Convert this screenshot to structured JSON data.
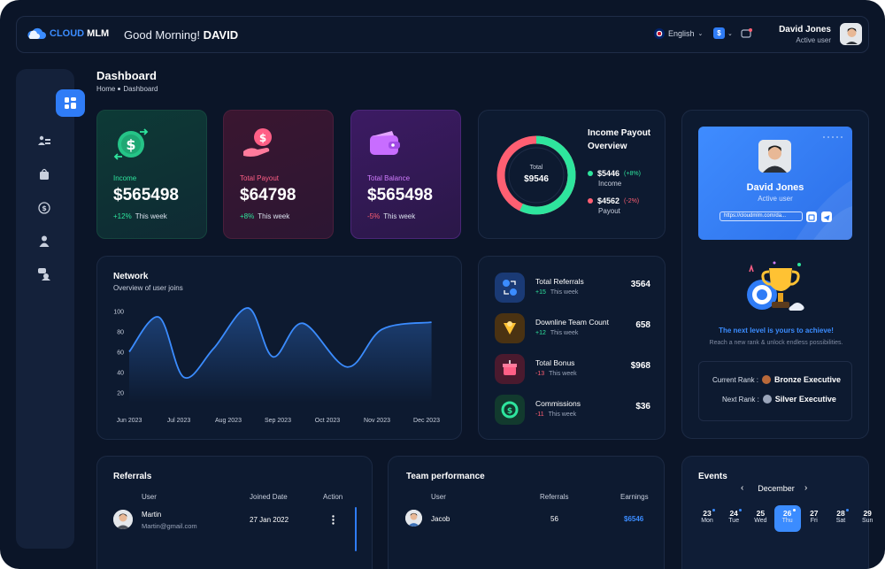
{
  "header": {
    "logo_primary": "CLOUD",
    "logo_secondary": "MLM",
    "greeting_prefix": "Good Morning!",
    "greeting_name": "DAVID",
    "language": "English",
    "currency_symbol": "$",
    "user_name": "David Jones",
    "user_status": "Active user"
  },
  "page": {
    "title": "Dashboard",
    "breadcrumb": [
      "Home",
      "Dashboard"
    ]
  },
  "stats": [
    {
      "label": "Income",
      "value": "$565498",
      "change": "+12%",
      "period": "This week",
      "color": "#2ee59d"
    },
    {
      "label": "Total Payout",
      "value": "$64798",
      "change": "+8%",
      "period": "This week",
      "color": "#ff5f86"
    },
    {
      "label": "Total Balance",
      "value": "$565498",
      "change": "-5%",
      "period": "This week",
      "color": "#d17cff"
    }
  ],
  "income_payout": {
    "title": "Income Payout Overview",
    "total_label": "Total",
    "total_value": "$9546",
    "income": {
      "value": "$5446",
      "change": "(+8%)",
      "label": "Income",
      "color": "#2ee59d"
    },
    "payout": {
      "value": "$4562",
      "change": "(-2%)",
      "label": "Payout",
      "color": "#ff5f72"
    }
  },
  "profile": {
    "name": "David Jones",
    "status": "Active user",
    "link": "https://cloudmlm.com/da...",
    "level_title": "The next level is yours to achieve!",
    "level_sub": "Reach a new rank & unlock endless possibilities.",
    "current_rank_label": "Current Rank :",
    "current_rank": "Bronze Executive",
    "next_rank_label": "Next Rank :",
    "next_rank": "Silver Executive"
  },
  "network": {
    "title": "Network",
    "subtitle": "Overview of user joins"
  },
  "chart_data": {
    "type": "area",
    "title": "Network",
    "subtitle": "Overview of user joins",
    "categories": [
      "Jun 2023",
      "Jul 2023",
      "Aug 2023",
      "Sep 2023",
      "Oct 2023",
      "Nov 2023",
      "Dec 2023"
    ],
    "yticks": [
      20,
      40,
      60,
      80,
      100
    ],
    "ylim": [
      10,
      110
    ],
    "x": [
      0,
      0.6,
      1.1,
      1.7,
      2.4,
      2.9,
      3.5,
      4.4,
      5.1,
      6.1
    ],
    "y": [
      60,
      94,
      35,
      63,
      103,
      55,
      88,
      45,
      82,
      89
    ],
    "color": "#3b8cff"
  },
  "summary_rows": [
    {
      "label": "Total Referrals",
      "change": "+15",
      "period": "This week",
      "value": "3564",
      "icon": "referral-icon"
    },
    {
      "label": "Downline Team Count",
      "change": "+12",
      "period": "This week",
      "value": "658",
      "icon": "team-icon"
    },
    {
      "label": "Total Bonus",
      "change": "-13",
      "period": "This week",
      "value": "$968",
      "icon": "gift-icon"
    },
    {
      "label": "Commissions",
      "change": "-11",
      "period": "This week",
      "value": "$36",
      "icon": "commission-icon"
    }
  ],
  "referrals": {
    "title": "Referrals",
    "columns": [
      "User",
      "Joined Date",
      "Action"
    ],
    "rows": [
      {
        "name": "Martin",
        "email": "Martin@gmail.com",
        "joined": "27 Jan 2022"
      }
    ]
  },
  "team": {
    "title": "Team performance",
    "columns": [
      "User",
      "Referrals",
      "Earnings"
    ],
    "rows": [
      {
        "name": "Jacob",
        "referrals": "56",
        "earnings": "$6546"
      }
    ]
  },
  "events": {
    "title": "Events",
    "month": "December",
    "days": [
      {
        "num": "23",
        "name": "Mon",
        "dot": true,
        "active": false
      },
      {
        "num": "24",
        "name": "Tue",
        "dot": true,
        "active": false
      },
      {
        "num": "25",
        "name": "Wed",
        "dot": false,
        "active": false
      },
      {
        "num": "26",
        "name": "Thu",
        "dot": true,
        "active": true
      },
      {
        "num": "27",
        "name": "Fri",
        "dot": false,
        "active": false
      },
      {
        "num": "28",
        "name": "Sat",
        "dot": true,
        "active": false
      },
      {
        "num": "29",
        "name": "Sun",
        "dot": false,
        "active": false
      }
    ]
  },
  "colors": {
    "accent": "#3b8cff",
    "background": "#0b1528",
    "panel": "#0d1a30"
  }
}
